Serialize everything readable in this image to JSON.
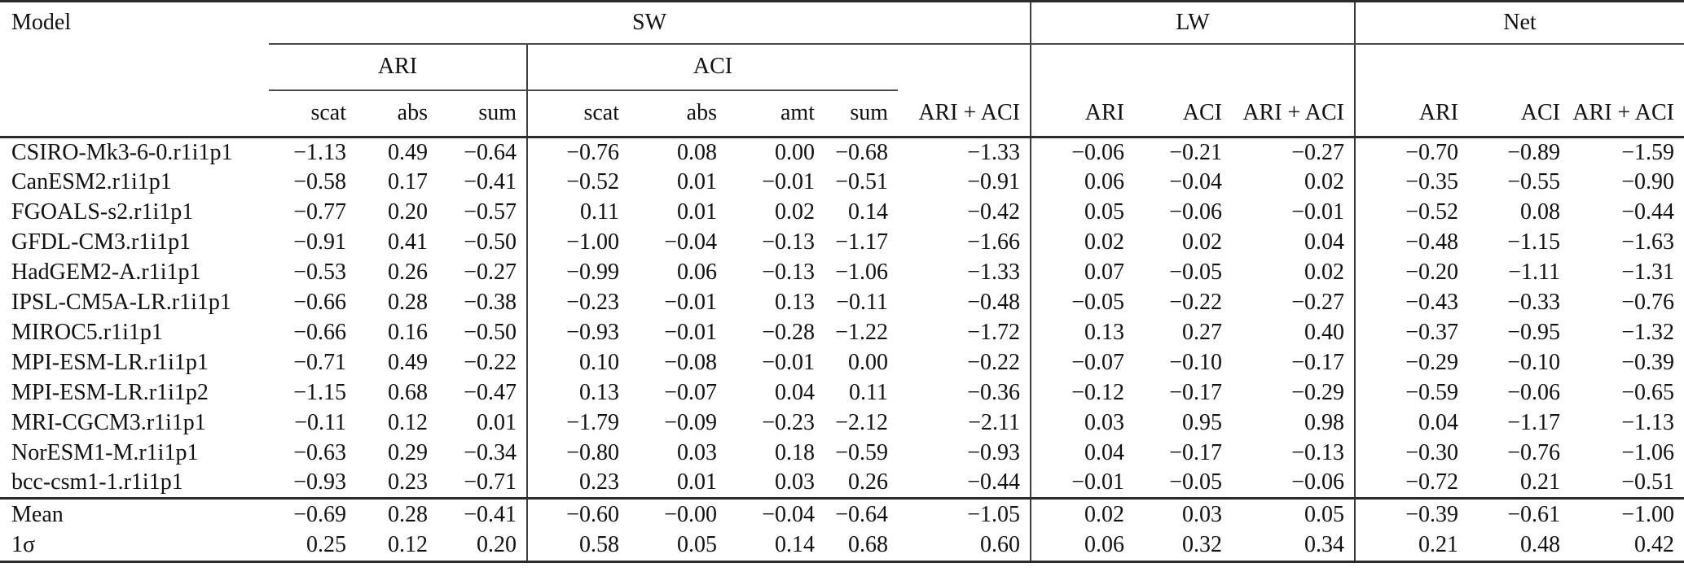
{
  "table": {
    "corner_label": "Model",
    "groups": [
      {
        "label": "SW"
      },
      {
        "label": "LW"
      },
      {
        "label": "Net"
      }
    ],
    "subgroups": [
      {
        "label": "ARI"
      },
      {
        "label": "ACI"
      }
    ],
    "columns": [
      "scat",
      "abs",
      "sum",
      "scat",
      "abs",
      "amt",
      "sum",
      "ARI + ACI",
      "ARI",
      "ACI",
      "ARI + ACI",
      "ARI",
      "ACI",
      "ARI + ACI"
    ],
    "rows": [
      {
        "model": "CSIRO-Mk3-6-0.r1i1p1",
        "values": [
          "−1.13",
          "0.49",
          "−0.64",
          "−0.76",
          "0.08",
          "0.00",
          "−0.68",
          "−1.33",
          "−0.06",
          "−0.21",
          "−0.27",
          "−0.70",
          "−0.89",
          "−1.59"
        ]
      },
      {
        "model": "CanESM2.r1i1p1",
        "values": [
          "−0.58",
          "0.17",
          "−0.41",
          "−0.52",
          "0.01",
          "−0.01",
          "−0.51",
          "−0.91",
          "0.06",
          "−0.04",
          "0.02",
          "−0.35",
          "−0.55",
          "−0.90"
        ]
      },
      {
        "model": "FGOALS-s2.r1i1p1",
        "values": [
          "−0.77",
          "0.20",
          "−0.57",
          "0.11",
          "0.01",
          "0.02",
          "0.14",
          "−0.42",
          "0.05",
          "−0.06",
          "−0.01",
          "−0.52",
          "0.08",
          "−0.44"
        ]
      },
      {
        "model": "GFDL-CM3.r1i1p1",
        "values": [
          "−0.91",
          "0.41",
          "−0.50",
          "−1.00",
          "−0.04",
          "−0.13",
          "−1.17",
          "−1.66",
          "0.02",
          "0.02",
          "0.04",
          "−0.48",
          "−1.15",
          "−1.63"
        ]
      },
      {
        "model": "HadGEM2-A.r1i1p1",
        "values": [
          "−0.53",
          "0.26",
          "−0.27",
          "−0.99",
          "0.06",
          "−0.13",
          "−1.06",
          "−1.33",
          "0.07",
          "−0.05",
          "0.02",
          "−0.20",
          "−1.11",
          "−1.31"
        ]
      },
      {
        "model": "IPSL-CM5A-LR.r1i1p1",
        "values": [
          "−0.66",
          "0.28",
          "−0.38",
          "−0.23",
          "−0.01",
          "0.13",
          "−0.11",
          "−0.48",
          "−0.05",
          "−0.22",
          "−0.27",
          "−0.43",
          "−0.33",
          "−0.76"
        ]
      },
      {
        "model": "MIROC5.r1i1p1",
        "values": [
          "−0.66",
          "0.16",
          "−0.50",
          "−0.93",
          "−0.01",
          "−0.28",
          "−1.22",
          "−1.72",
          "0.13",
          "0.27",
          "0.40",
          "−0.37",
          "−0.95",
          "−1.32"
        ]
      },
      {
        "model": "MPI-ESM-LR.r1i1p1",
        "values": [
          "−0.71",
          "0.49",
          "−0.22",
          "0.10",
          "−0.08",
          "−0.01",
          "0.00",
          "−0.22",
          "−0.07",
          "−0.10",
          "−0.17",
          "−0.29",
          "−0.10",
          "−0.39"
        ]
      },
      {
        "model": "MPI-ESM-LR.r1i1p2",
        "values": [
          "−1.15",
          "0.68",
          "−0.47",
          "0.13",
          "−0.07",
          "0.04",
          "0.11",
          "−0.36",
          "−0.12",
          "−0.17",
          "−0.29",
          "−0.59",
          "−0.06",
          "−0.65"
        ]
      },
      {
        "model": "MRI-CGCM3.r1i1p1",
        "values": [
          "−0.11",
          "0.12",
          "0.01",
          "−1.79",
          "−0.09",
          "−0.23",
          "−2.12",
          "−2.11",
          "0.03",
          "0.95",
          "0.98",
          "0.04",
          "−1.17",
          "−1.13"
        ]
      },
      {
        "model": "NorESM1-M.r1i1p1",
        "values": [
          "−0.63",
          "0.29",
          "−0.34",
          "−0.80",
          "0.03",
          "0.18",
          "−0.59",
          "−0.93",
          "0.04",
          "−0.17",
          "−0.13",
          "−0.30",
          "−0.76",
          "−1.06"
        ]
      },
      {
        "model": "bcc-csm1-1.r1i1p1",
        "values": [
          "−0.93",
          "0.23",
          "−0.71",
          "0.23",
          "0.01",
          "0.03",
          "0.26",
          "−0.44",
          "−0.01",
          "−0.05",
          "−0.06",
          "−0.72",
          "0.21",
          "−0.51"
        ]
      }
    ],
    "summary_rows": [
      {
        "model": "Mean",
        "values": [
          "−0.69",
          "0.28",
          "−0.41",
          "−0.60",
          "−0.00",
          "−0.04",
          "−0.64",
          "−1.05",
          "0.02",
          "0.03",
          "0.05",
          "−0.39",
          "−0.61",
          "−1.00"
        ]
      },
      {
        "model": "1σ",
        "values": [
          "0.25",
          "0.12",
          "0.20",
          "0.58",
          "0.05",
          "0.14",
          "0.68",
          "0.60",
          "0.06",
          "0.32",
          "0.34",
          "0.21",
          "0.48",
          "0.42"
        ]
      }
    ]
  }
}
